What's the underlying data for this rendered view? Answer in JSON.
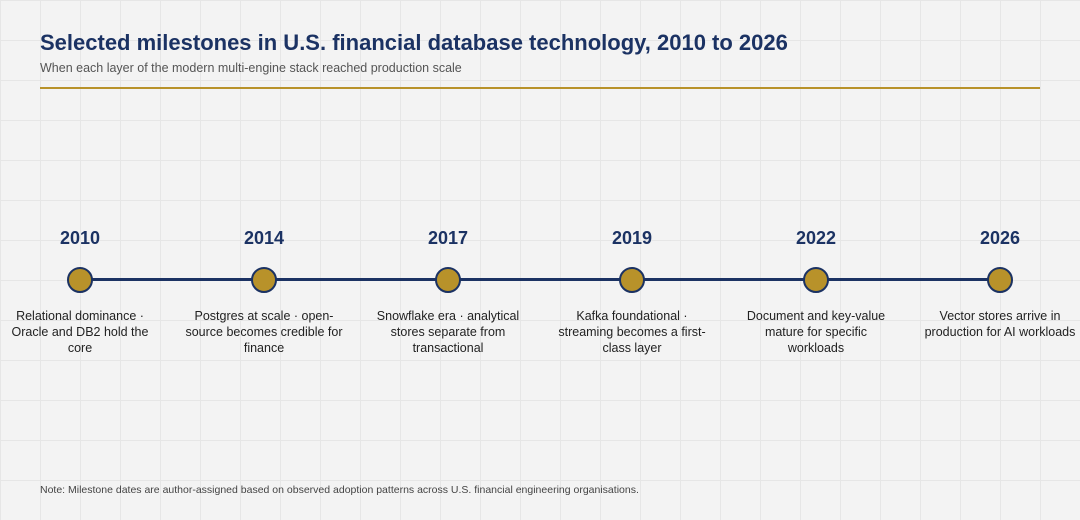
{
  "title": "Selected milestones in U.S. financial database technology, 2010 to 2026",
  "subtitle": "When each layer of the modern multi-engine stack reached production scale",
  "milestones": [
    {
      "year": "2010",
      "description": "Relational dominance · Oracle and DB2 hold the core"
    },
    {
      "year": "2014",
      "description": "Postgres at scale · open-source becomes credible for finance"
    },
    {
      "year": "2017",
      "description": "Snowflake era · analytical stores separate from transactional"
    },
    {
      "year": "2019",
      "description": "Kafka foundational · streaming becomes a first-class layer"
    },
    {
      "year": "2022",
      "description": "Document and key-value mature for specific workloads"
    },
    {
      "year": "2026",
      "description": "Vector stores arrive in production for AI workloads"
    }
  ],
  "note": "Note: Milestone dates are author-assigned based on observed adoption patterns across U.S. financial engineering organisations.",
  "colors": {
    "navy": "#1b3263",
    "gold": "#b8922a",
    "background": "#f3f3f3"
  }
}
